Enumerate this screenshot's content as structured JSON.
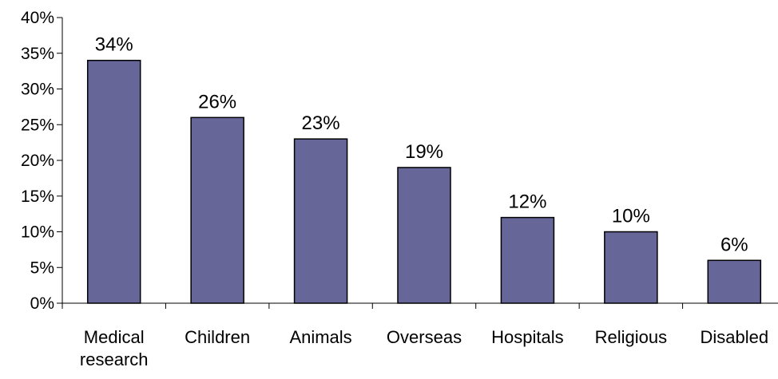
{
  "chart_data": {
    "type": "bar",
    "categories": [
      "Medical research",
      "Children",
      "Animals",
      "Overseas",
      "Hospitals",
      "Religious",
      "Disabled"
    ],
    "category_lines": [
      [
        "Medical",
        "research"
      ],
      [
        "Children"
      ],
      [
        "Animals"
      ],
      [
        "Overseas"
      ],
      [
        "Hospitals"
      ],
      [
        "Religious"
      ],
      [
        "Disabled"
      ]
    ],
    "values": [
      34,
      26,
      23,
      19,
      12,
      10,
      6
    ],
    "data_labels": [
      "34%",
      "26%",
      "23%",
      "19%",
      "12%",
      "10%",
      "6%"
    ],
    "ylim": [
      0,
      40
    ],
    "y_ticks": [
      0,
      5,
      10,
      15,
      20,
      25,
      30,
      35,
      40
    ],
    "y_tick_labels": [
      "0%",
      "5%",
      "10%",
      "15%",
      "20%",
      "25%",
      "30%",
      "35%",
      "40%"
    ],
    "title": "",
    "xlabel": "",
    "ylabel": "",
    "grid": false,
    "legend": "none",
    "bar_color": "#666699",
    "bar_edge_color": "#000000"
  }
}
